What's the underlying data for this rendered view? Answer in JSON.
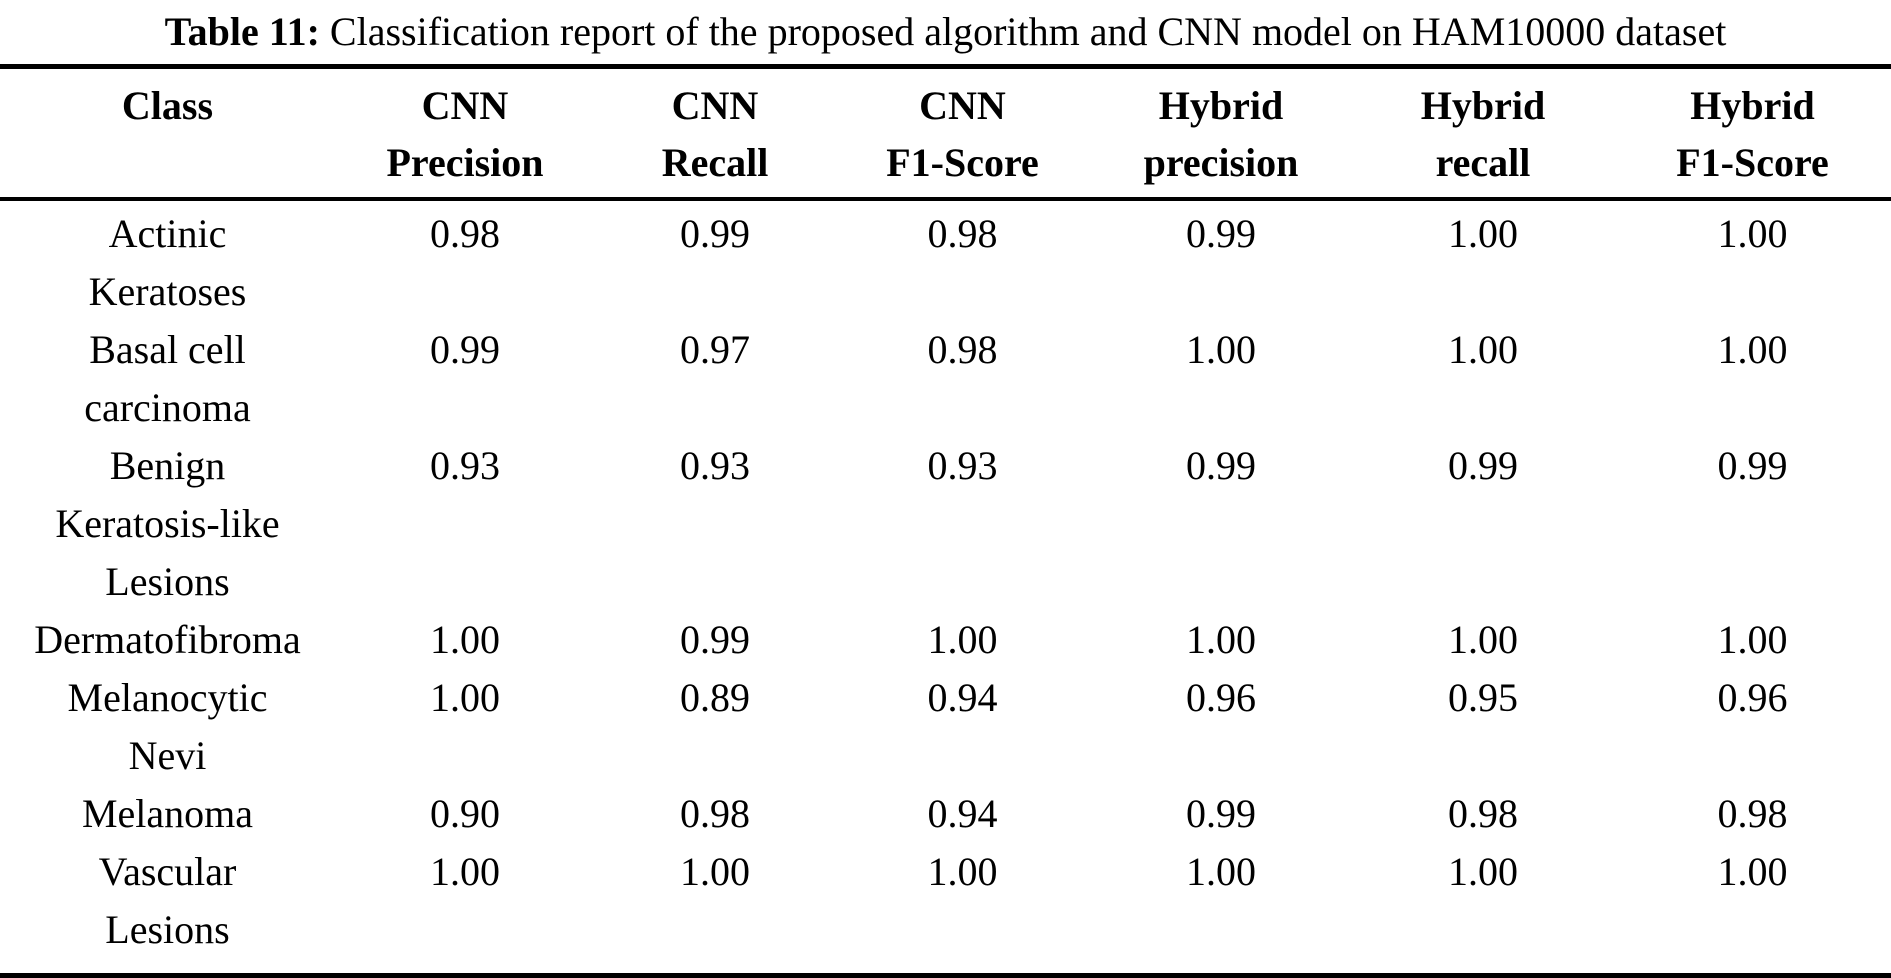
{
  "caption": {
    "label": "Table 11:",
    "text": "Classification report of the proposed algorithm and CNN model on HAM10000 dataset"
  },
  "table": {
    "columns": [
      "Class",
      "CNN\nPrecision",
      "CNN\nRecall",
      "CNN\nF1-Score",
      "Hybrid\nprecision",
      "Hybrid\nrecall",
      "Hybrid\nF1-Score"
    ],
    "rows": [
      {
        "class": "Actinic\nKeratoses",
        "values": [
          "0.98",
          "0.99",
          "0.98",
          "0.99",
          "1.00",
          "1.00"
        ]
      },
      {
        "class": "Basal cell\ncarcinoma",
        "values": [
          "0.99",
          "0.97",
          "0.98",
          "1.00",
          "1.00",
          "1.00"
        ]
      },
      {
        "class": "Benign\nKeratosis-like\nLesions",
        "values": [
          "0.93",
          "0.93",
          "0.93",
          "0.99",
          "0.99",
          "0.99"
        ]
      },
      {
        "class": "Dermatofibroma",
        "values": [
          "1.00",
          "0.99",
          "1.00",
          "1.00",
          "1.00",
          "1.00"
        ]
      },
      {
        "class": "Melanocytic\nNevi",
        "values": [
          "1.00",
          "0.89",
          "0.94",
          "0.96",
          "0.95",
          "0.96"
        ]
      },
      {
        "class": "Melanoma",
        "values": [
          "0.90",
          "0.98",
          "0.94",
          "0.99",
          "0.98",
          "0.98"
        ]
      },
      {
        "class": "Vascular\nLesions",
        "values": [
          "1.00",
          "1.00",
          "1.00",
          "1.00",
          "1.00",
          "1.00"
        ]
      }
    ]
  },
  "chart_data": {
    "type": "table",
    "title": "Table 11: Classification report of the proposed algorithm and CNN model on HAM10000 dataset",
    "categories": [
      "Actinic Keratoses",
      "Basal cell carcinoma",
      "Benign Keratosis-like Lesions",
      "Dermatofibroma",
      "Melanocytic Nevi",
      "Melanoma",
      "Vascular Lesions"
    ],
    "series": [
      {
        "name": "CNN Precision",
        "values": [
          0.98,
          0.99,
          0.93,
          1.0,
          1.0,
          0.9,
          1.0
        ]
      },
      {
        "name": "CNN Recall",
        "values": [
          0.99,
          0.97,
          0.93,
          0.99,
          0.89,
          0.98,
          1.0
        ]
      },
      {
        "name": "CNN F1-Score",
        "values": [
          0.98,
          0.98,
          0.93,
          1.0,
          0.94,
          0.94,
          1.0
        ]
      },
      {
        "name": "Hybrid precision",
        "values": [
          0.99,
          1.0,
          0.99,
          1.0,
          0.96,
          0.99,
          1.0
        ]
      },
      {
        "name": "Hybrid recall",
        "values": [
          1.0,
          1.0,
          0.99,
          1.0,
          0.95,
          0.98,
          1.0
        ]
      },
      {
        "name": "Hybrid F1-Score",
        "values": [
          1.0,
          1.0,
          0.99,
          1.0,
          0.96,
          0.98,
          1.0
        ]
      }
    ]
  }
}
